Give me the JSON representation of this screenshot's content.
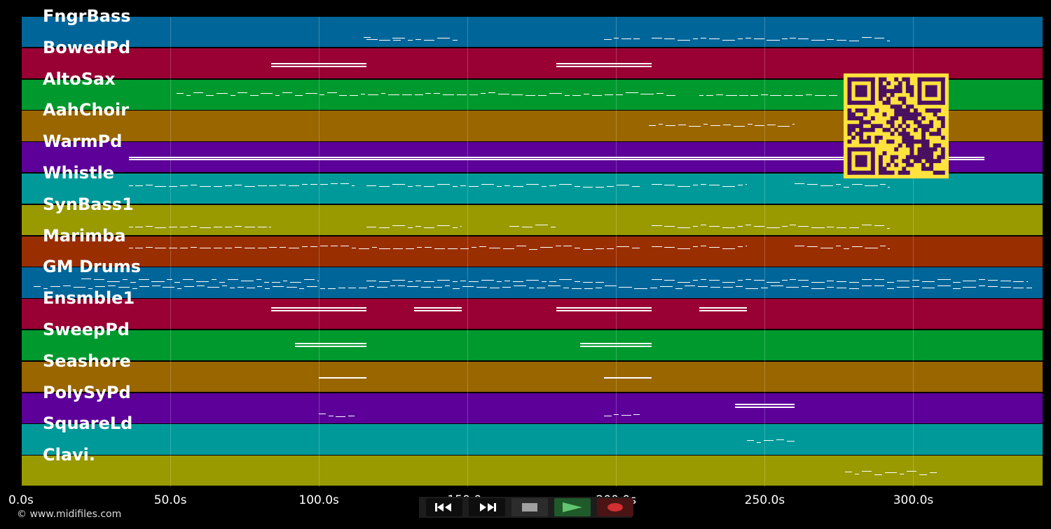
{
  "tracks": [
    {
      "name": "FngrBass",
      "color": "#006699"
    },
    {
      "name": "BowedPd",
      "color": "#990033"
    },
    {
      "name": "AltoSax",
      "color": "#00992e"
    },
    {
      "name": "AahChoir",
      "color": "#996600"
    },
    {
      "name": "WarmPd",
      "color": "#5c0099"
    },
    {
      "name": "Whistle",
      "color": "#009999"
    },
    {
      "name": "SynBass1",
      "color": "#999900"
    },
    {
      "name": "Marimba",
      "color": "#992e00"
    },
    {
      "name": "GM Drums",
      "color": "#006699"
    },
    {
      "name": "Ensmble1",
      "color": "#990033"
    },
    {
      "name": "SweepPd",
      "color": "#00992e"
    },
    {
      "name": "Seashore",
      "color": "#996600"
    },
    {
      "name": "PolySyPd",
      "color": "#5c0099"
    },
    {
      "name": "SquareLd",
      "color": "#009999"
    },
    {
      "name": "Clavi.",
      "color": "#999900"
    }
  ],
  "time_axis": {
    "labels": [
      "0.0s",
      "50.0s",
      "100.0s",
      "150.0s",
      "200.0s",
      "250.0s",
      "300.0s"
    ],
    "values": [
      0,
      50,
      100,
      150,
      200,
      250,
      300
    ],
    "max": 343.5
  },
  "copyright": "© www.midifiles.com",
  "transport": {
    "rewind": "rewind-icon",
    "fast_forward": "fast-forward-icon",
    "stop": "stop-icon",
    "play": "play-icon",
    "record": "record-icon"
  },
  "qr_code": {
    "color": "#ffe23d",
    "module_color": "#4a1060"
  }
}
